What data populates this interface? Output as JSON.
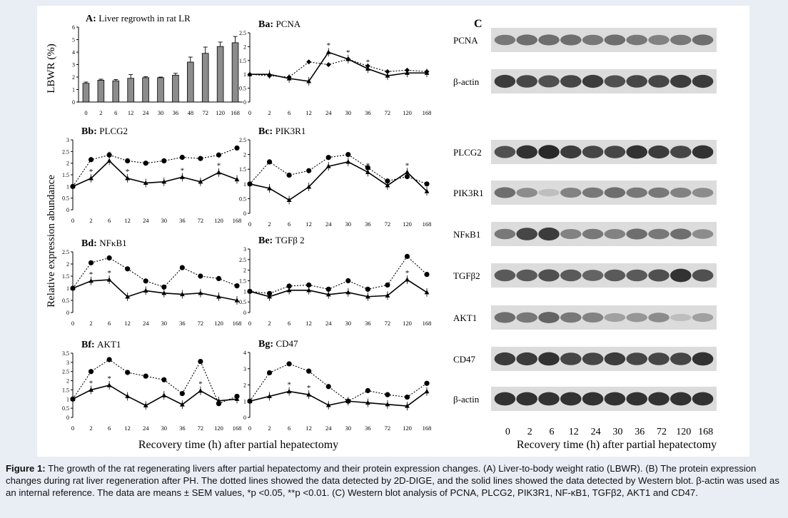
{
  "figure": {
    "x_axis_title": "Recovery time (h) after partial hepatectomy",
    "y_axis_title_lbwr": "LBWR (%)",
    "y_axis_title_rel": "Relative expression abundance",
    "time_labels": [
      "0",
      "2",
      "6",
      "12",
      "24",
      "30",
      "36",
      "48",
      "72",
      "120",
      "168"
    ],
    "time_labels_short": [
      "0",
      "2",
      "6",
      "12",
      "24",
      "30",
      "36",
      "72",
      "120",
      "168"
    ]
  },
  "chart_data": [
    {
      "id": "A",
      "type": "bar",
      "panel_letter": "A:",
      "panel_name": "Liver regrowth in rat LR",
      "categories": [
        "0",
        "2",
        "6",
        "12",
        "24",
        "30",
        "36",
        "48",
        "72",
        "120",
        "168"
      ],
      "values": [
        1.5,
        1.75,
        1.7,
        1.9,
        1.95,
        1.95,
        2.15,
        3.2,
        3.9,
        4.45,
        4.75
      ],
      "errors": [
        0.1,
        0.08,
        0.1,
        0.3,
        0.08,
        0.05,
        0.15,
        0.4,
        0.5,
        0.35,
        0.5
      ],
      "ylim": [
        0,
        6
      ],
      "yticks": [
        "0",
        "1",
        "2",
        "3",
        "4",
        "5",
        "6"
      ]
    },
    {
      "id": "Ba",
      "type": "line",
      "panel_letter": "Ba:",
      "panel_name": "PCNA",
      "ylim": [
        0,
        2.5
      ],
      "yticks": [
        "0",
        "0.5",
        "1",
        "1.5",
        "2",
        "2.5"
      ],
      "dotted_marker": "diamond",
      "dotted": [
        1.0,
        0.95,
        0.9,
        1.45,
        1.35,
        1.55,
        1.3,
        1.1,
        1.15,
        1.1
      ],
      "solid": [
        1.0,
        1.0,
        0.85,
        0.75,
        1.8,
        1.55,
        1.2,
        0.95,
        1.05,
        1.05
      ],
      "stars": [
        4,
        5,
        6
      ]
    },
    {
      "id": "Bb",
      "type": "line",
      "panel_letter": "Bb:",
      "panel_name": "PLCG2",
      "ylim": [
        0,
        3
      ],
      "yticks": [
        "0",
        "0.5",
        "1",
        "1.5",
        "2",
        "2.5",
        "3"
      ],
      "dotted_marker": "circle",
      "dotted": [
        1.0,
        2.15,
        2.35,
        2.1,
        2.0,
        2.1,
        2.25,
        2.2,
        2.35,
        2.65
      ],
      "solid": [
        1.0,
        1.35,
        2.1,
        1.35,
        1.15,
        1.2,
        1.4,
        1.2,
        1.6,
        1.3
      ],
      "stars": [
        1,
        2,
        3,
        6,
        8
      ]
    },
    {
      "id": "Bc",
      "type": "line",
      "panel_letter": "Bc:",
      "panel_name": "PIK3R1",
      "ylim": [
        0,
        2.5
      ],
      "yticks": [
        "0",
        "0.5",
        "1",
        "1.5",
        "2",
        "2.5"
      ],
      "dotted_marker": "circle",
      "dotted": [
        1.0,
        1.75,
        1.3,
        1.45,
        1.9,
        2.0,
        1.55,
        1.1,
        1.25,
        1.0
      ],
      "solid": [
        1.0,
        0.85,
        0.45,
        0.9,
        1.6,
        1.75,
        1.4,
        0.95,
        1.4,
        0.75
      ],
      "stars": [
        6,
        8
      ]
    },
    {
      "id": "Bd",
      "type": "line",
      "panel_letter": "Bd:",
      "panel_name": "NFκB1",
      "ylim": [
        0,
        2.5
      ],
      "yticks": [
        "0",
        "0.5",
        "1",
        "1.5",
        "2",
        "2.5"
      ],
      "dotted_marker": "circle",
      "dotted": [
        1.0,
        2.05,
        2.25,
        1.8,
        1.3,
        1.05,
        1.85,
        1.5,
        1.4,
        1.1
      ],
      "solid": [
        1.0,
        1.3,
        1.35,
        0.65,
        0.9,
        0.8,
        0.75,
        0.8,
        0.65,
        0.5
      ],
      "stars": [
        1,
        2
      ]
    },
    {
      "id": "Be",
      "type": "line",
      "panel_letter": "Be:",
      "panel_name": "TGFβ 2",
      "ylim": [
        0,
        3
      ],
      "yticks": [
        "0",
        "0.5",
        "1",
        "1.5",
        "2",
        "2.5",
        "3"
      ],
      "dotted_marker": "circle",
      "dotted": [
        1.0,
        0.9,
        1.25,
        1.3,
        1.1,
        1.5,
        1.1,
        1.3,
        2.65,
        1.8
      ],
      "solid": [
        1.0,
        0.75,
        1.05,
        1.05,
        0.85,
        0.95,
        0.75,
        0.8,
        1.55,
        0.95
      ],
      "stars": [
        8
      ]
    },
    {
      "id": "Bf",
      "type": "line",
      "panel_letter": "Bf:",
      "panel_name": "AKT1",
      "ylim": [
        0,
        3.5
      ],
      "yticks": [
        "0",
        "0.5",
        "1",
        "1.5",
        "2",
        "2.5",
        "3",
        "3.5"
      ],
      "dotted_marker": "circle",
      "dotted": [
        1.0,
        2.5,
        3.15,
        2.45,
        2.25,
        2.05,
        1.3,
        3.05,
        0.75,
        1.15
      ],
      "solid": [
        1.0,
        1.5,
        1.75,
        1.15,
        0.65,
        1.2,
        0.7,
        1.45,
        0.9,
        1.0
      ],
      "stars": [
        1,
        2,
        7
      ]
    },
    {
      "id": "Bg",
      "type": "line",
      "panel_letter": "Bg:",
      "panel_name": "CD47",
      "ylim": [
        0,
        4
      ],
      "yticks": [
        "0",
        "1",
        "2",
        "3",
        "4"
      ],
      "dotted_marker": "circle",
      "dotted": [
        1.0,
        2.75,
        3.3,
        2.85,
        1.9,
        1.0,
        1.65,
        1.4,
        1.25,
        2.1
      ],
      "solid": [
        1.0,
        1.3,
        1.6,
        1.4,
        0.75,
        1.0,
        0.9,
        0.8,
        0.7,
        1.6
      ],
      "stars": [
        2,
        3,
        9
      ]
    }
  ],
  "blot": {
    "panel_letter": "C",
    "rows": [
      {
        "label": "PCNA",
        "intensity": [
          0.55,
          0.6,
          0.6,
          0.6,
          0.55,
          0.6,
          0.55,
          0.5,
          0.55,
          0.6
        ]
      },
      {
        "label": "β-actin",
        "intensity": [
          0.85,
          0.8,
          0.75,
          0.8,
          0.85,
          0.75,
          0.8,
          0.8,
          0.85,
          0.85
        ]
      },
      {
        "label": "PLCG2",
        "intensity": [
          0.75,
          0.9,
          0.95,
          0.85,
          0.8,
          0.8,
          0.9,
          0.85,
          0.8,
          0.9
        ]
      },
      {
        "label": "PIK3R1",
        "intensity": [
          0.6,
          0.45,
          0.2,
          0.5,
          0.55,
          0.6,
          0.55,
          0.55,
          0.5,
          0.45
        ]
      },
      {
        "label": "NFκB1",
        "intensity": [
          0.55,
          0.8,
          0.85,
          0.5,
          0.55,
          0.5,
          0.6,
          0.55,
          0.6,
          0.45
        ]
      },
      {
        "label": "TGFβ2",
        "intensity": [
          0.7,
          0.7,
          0.75,
          0.7,
          0.65,
          0.7,
          0.7,
          0.75,
          0.9,
          0.75
        ]
      },
      {
        "label": "AKT1",
        "intensity": [
          0.6,
          0.55,
          0.65,
          0.55,
          0.5,
          0.35,
          0.4,
          0.45,
          0.2,
          0.35
        ]
      },
      {
        "label": "CD47",
        "intensity": [
          0.85,
          0.85,
          0.9,
          0.8,
          0.8,
          0.85,
          0.8,
          0.8,
          0.8,
          0.9
        ]
      },
      {
        "label": "β-actin",
        "intensity": [
          0.9,
          0.9,
          0.9,
          0.9,
          0.9,
          0.9,
          0.9,
          0.9,
          0.9,
          0.9
        ]
      }
    ],
    "lane_labels": [
      "0",
      "2",
      "6",
      "12",
      "24",
      "30",
      "36",
      "72",
      "120",
      "168"
    ],
    "x_axis_title": "Recovery time (h) after partial hepatectomy"
  },
  "caption": {
    "lead": "Figure 1:",
    "text": "The growth of the rat regenerating livers after partial hepatectomy and their protein expression changes. (A) Liver-to-body weight ratio (LBWR). (B) The protein expression changes during rat liver regeneration after PH. The dotted lines showed the data detected by 2D-DIGE, and the solid lines showed the data detected by Western blot. β-actin was used as an internal reference. The data are means ± SEM values, *p <0.05, **p <0.01. (C) Western blot analysis of PCNA, PLCG2, PIK3R1, NF-κB1, TGFβ2, AKT1 and CD47."
  }
}
